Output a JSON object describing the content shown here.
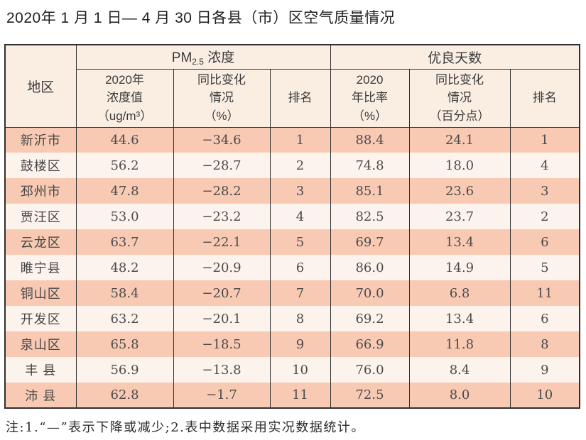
{
  "page": {
    "title": "2020年 1 月 1 日— 4 月 30 日各县（市）区空气质量情况",
    "footnote": "注:1.“—”表示下降或减少;2.表中数据采用实况数据统计。"
  },
  "colors": {
    "header_bg": "#faeee3",
    "row_dark": "#f8c9b3",
    "row_light": "#fdf3ed",
    "border": "#2f2f2f"
  },
  "table": {
    "header": {
      "region": "地区",
      "pm25_group": {
        "prefix": "PM",
        "sub": "2.5",
        "suffix": " 浓度"
      },
      "good_days_group": "优良天数",
      "pm25_value": "2020年\n浓度值\n（ug/m³）",
      "pm25_change": "同比变化\n情况\n（%）",
      "pm25_rank": "排名",
      "good_rate": "2020\n年比率\n（%）",
      "good_change": "同比变化\n情况\n（百分点）",
      "good_rank": "排名"
    },
    "col_keys": [
      "region",
      "pm25_value",
      "pm25_change",
      "pm25_rank",
      "good_rate",
      "good_change",
      "good_rank"
    ],
    "rows": [
      [
        "新沂市",
        "44.6",
        "−34.6",
        "1",
        "88.4",
        "24.1",
        "1"
      ],
      [
        "鼓楼区",
        "56.2",
        "−28.7",
        "2",
        "74.8",
        "18.0",
        "4"
      ],
      [
        "邳州市",
        "47.8",
        "−28.2",
        "3",
        "85.1",
        "23.6",
        "3"
      ],
      [
        "贾汪区",
        "53.0",
        "−23.2",
        "4",
        "82.5",
        "23.7",
        "2"
      ],
      [
        "云龙区",
        "63.7",
        "−22.1",
        "5",
        "69.7",
        "13.4",
        "6"
      ],
      [
        "睢宁县",
        "48.2",
        "−20.9",
        "6",
        "86.0",
        "14.9",
        "5"
      ],
      [
        "铜山区",
        "58.4",
        "−20.7",
        "7",
        "70.0",
        "6.8",
        "11"
      ],
      [
        "开发区",
        "63.2",
        "−20.1",
        "8",
        "69.2",
        "13.4",
        "6"
      ],
      [
        "泉山区",
        "65.8",
        "−18.5",
        "9",
        "66.9",
        "11.8",
        "8"
      ],
      [
        "丰 县",
        "56.9",
        "−13.8",
        "10",
        "76.0",
        "8.4",
        "9"
      ],
      [
        "沛 县",
        "62.8",
        "−1.7",
        "11",
        "72.5",
        "8.0",
        "10"
      ]
    ]
  }
}
